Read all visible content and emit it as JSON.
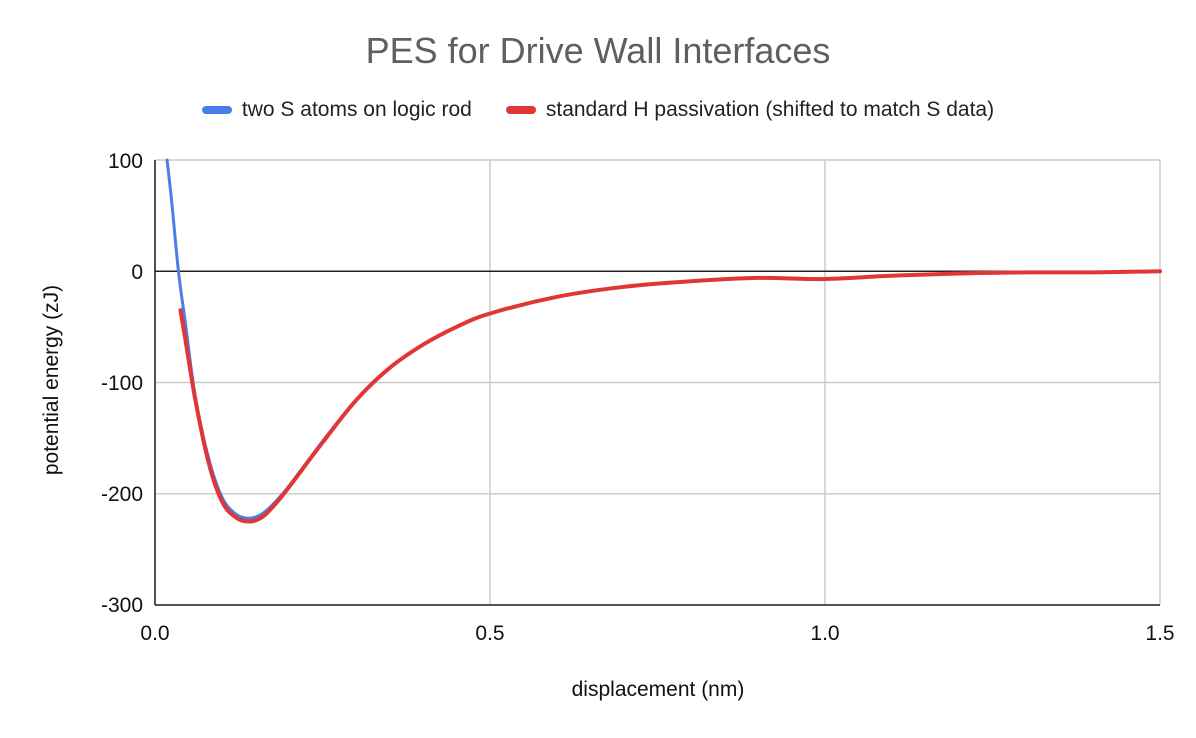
{
  "chart_data": {
    "type": "line",
    "title": "PES for Drive Wall Interfaces",
    "xlabel": "displacement (nm)",
    "ylabel": "potential energy (zJ)",
    "xlim": [
      0.0,
      1.5
    ],
    "ylim": [
      -300,
      100
    ],
    "x_ticks": [
      "0.0",
      "0.5",
      "1.0",
      "1.5"
    ],
    "y_ticks": [
      "100",
      "0",
      "-100",
      "-200",
      "-300"
    ],
    "grid": true,
    "legend_position": "top",
    "series": [
      {
        "name": "two S atoms on logic rod",
        "color": "#4a7de8",
        "x": [
          0.018,
          0.025,
          0.035,
          0.045,
          0.06,
          0.08,
          0.1,
          0.12,
          0.14,
          0.16,
          0.18,
          0.2,
          0.25,
          0.3,
          0.35,
          0.4,
          0.45,
          0.5,
          0.6,
          0.7,
          0.8,
          0.9,
          1.0,
          1.1,
          1.2,
          1.3,
          1.4,
          1.5
        ],
        "y": [
          100,
          62,
          0,
          -45,
          -112,
          -168,
          -203,
          -218,
          -222,
          -218,
          -207,
          -193,
          -153,
          -116,
          -87,
          -66,
          -50,
          -38,
          -23,
          -14,
          -9,
          -6,
          -7,
          -4,
          -2,
          -1,
          -1,
          0
        ]
      },
      {
        "name": "standard H passivation (shifted to match S data)",
        "color": "#e03636",
        "x": [
          0.038,
          0.045,
          0.06,
          0.08,
          0.1,
          0.12,
          0.14,
          0.16,
          0.18,
          0.2,
          0.25,
          0.3,
          0.35,
          0.4,
          0.45,
          0.5,
          0.6,
          0.7,
          0.8,
          0.9,
          1.0,
          1.1,
          1.2,
          1.3,
          1.4,
          1.5
        ],
        "y": [
          -35,
          -60,
          -115,
          -172,
          -207,
          -221,
          -225,
          -221,
          -209,
          -194,
          -154,
          -116,
          -87,
          -66,
          -50,
          -38,
          -23,
          -14,
          -9,
          -6,
          -7,
          -4,
          -2,
          -1,
          -1,
          0
        ]
      }
    ]
  }
}
